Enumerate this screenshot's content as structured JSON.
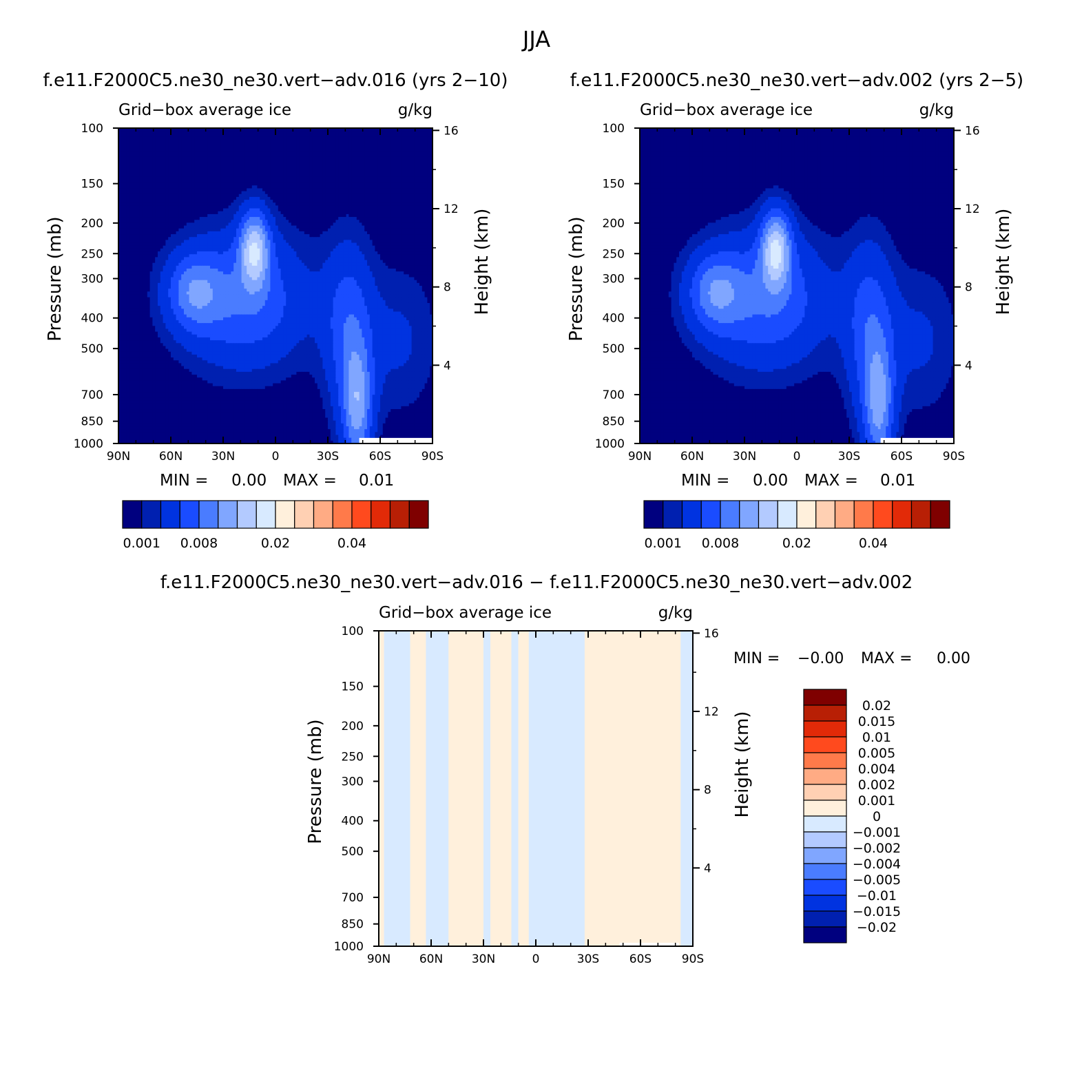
{
  "page": {
    "title": "JJA"
  },
  "palette": {
    "mean": [
      "#00007f",
      "#0020b0",
      "#0033e0",
      "#1a4cff",
      "#4a7cff",
      "#80a6ff",
      "#b3caff",
      "#d8eaff",
      "#fff0dc",
      "#ffd0b3",
      "#ffab84",
      "#ff7a4a",
      "#ff4a1e",
      "#e22a08",
      "#b81f05",
      "#7f0000"
    ],
    "diff": [
      "#7f0000",
      "#b81f05",
      "#e22a08",
      "#ff4a1e",
      "#ff7a4a",
      "#ffab84",
      "#ffd0b3",
      "#fff0dc",
      "#d8eaff",
      "#b3caff",
      "#80a6ff",
      "#4a7cff",
      "#1a4cff",
      "#0033e0",
      "#0020b0",
      "#00007f"
    ]
  },
  "chart_data": [
    {
      "id": "p1",
      "type": "heatmap",
      "title": "f.e11.F2000C5.ne30_ne30.vert-adv.016 (yrs 2-10)",
      "left_label": "Grid-box average ice",
      "right_label": "g/kg",
      "xlabel": "",
      "ylabel": "Pressure (mb)",
      "y2label": "Height (km)",
      "xlim": [
        90,
        -90
      ],
      "ylim": [
        1000,
        100
      ],
      "x_ticks": [
        {
          "v": 90,
          "label": "90N"
        },
        {
          "v": 60,
          "label": "60N"
        },
        {
          "v": 30,
          "label": "30N"
        },
        {
          "v": 0,
          "label": "0"
        },
        {
          "v": -30,
          "label": "30S"
        },
        {
          "v": -60,
          "label": "60S"
        },
        {
          "v": -90,
          "label": "90S"
        }
      ],
      "y_ticks": [
        {
          "v": 100,
          "label": "100"
        },
        {
          "v": 150,
          "label": "150"
        },
        {
          "v": 200,
          "label": "200"
        },
        {
          "v": 250,
          "label": "250"
        },
        {
          "v": 300,
          "label": "300"
        },
        {
          "v": 400,
          "label": "400"
        },
        {
          "v": 500,
          "label": "500"
        },
        {
          "v": 700,
          "label": "700"
        },
        {
          "v": 850,
          "label": "850"
        },
        {
          "v": 1000,
          "label": "1000"
        }
      ],
      "y2_ticks": [
        {
          "km": 16,
          "label": "16"
        },
        {
          "km": 12,
          "label": "12"
        },
        {
          "km": 8,
          "label": "8"
        },
        {
          "km": 4,
          "label": "4"
        }
      ],
      "min_label": "MIN =",
      "min_value": "0.00",
      "max_label": "MAX =",
      "max_value": "0.01",
      "colorbar": {
        "orientation": "horizontal",
        "labels": [
          {
            "index": 0,
            "text": "0.001"
          },
          {
            "index": 3,
            "text": "0.008"
          },
          {
            "index": 7,
            "text": "0.02"
          },
          {
            "index": 11,
            "text": "0.04"
          }
        ]
      },
      "features": [
        {
          "cx": 18,
          "cp": 350,
          "sx": 26,
          "sy": 1.0,
          "amp": 0.006
        },
        {
          "cx": 47,
          "cp": 330,
          "sx": 11,
          "sy": 0.55,
          "amp": 0.0055
        },
        {
          "cx": 12,
          "cp": 240,
          "sx": 6,
          "sy": 0.55,
          "amp": 0.0095
        },
        {
          "cx": -42,
          "cp": 440,
          "sx": 10,
          "sy": 1.3,
          "amp": 0.005
        },
        {
          "cx": -47,
          "cp": 780,
          "sx": 6,
          "sy": 0.9,
          "amp": 0.0075
        },
        {
          "cx": -72,
          "cp": 470,
          "sx": 15,
          "sy": 1.1,
          "amp": 0.0022
        }
      ],
      "missing": {
        "x_from": -48,
        "x_to": -90,
        "p_from": 960,
        "p_to": 1000
      }
    },
    {
      "id": "p2",
      "type": "heatmap",
      "title": "f.e11.F2000C5.ne30_ne30.vert-adv.002 (yrs 2-5)",
      "left_label": "Grid-box average ice",
      "right_label": "g/kg",
      "xlabel": "",
      "ylabel": "Pressure (mb)",
      "y2label": "Height (km)",
      "xlim": [
        90,
        -90
      ],
      "ylim": [
        1000,
        100
      ],
      "x_ticks": [
        {
          "v": 90,
          "label": "90N"
        },
        {
          "v": 60,
          "label": "60N"
        },
        {
          "v": 30,
          "label": "30N"
        },
        {
          "v": 0,
          "label": "0"
        },
        {
          "v": -30,
          "label": "30S"
        },
        {
          "v": -60,
          "label": "60S"
        },
        {
          "v": -90,
          "label": "90S"
        }
      ],
      "y_ticks": [
        {
          "v": 100,
          "label": "100"
        },
        {
          "v": 150,
          "label": "150"
        },
        {
          "v": 200,
          "label": "200"
        },
        {
          "v": 250,
          "label": "250"
        },
        {
          "v": 300,
          "label": "300"
        },
        {
          "v": 400,
          "label": "400"
        },
        {
          "v": 500,
          "label": "500"
        },
        {
          "v": 700,
          "label": "700"
        },
        {
          "v": 850,
          "label": "850"
        },
        {
          "v": 1000,
          "label": "1000"
        }
      ],
      "y2_ticks": [
        {
          "km": 16,
          "label": "16"
        },
        {
          "km": 12,
          "label": "12"
        },
        {
          "km": 8,
          "label": "8"
        },
        {
          "km": 4,
          "label": "4"
        }
      ],
      "min_label": "MIN =",
      "min_value": "0.00",
      "max_label": "MAX =",
      "max_value": "0.01",
      "colorbar": {
        "orientation": "horizontal",
        "labels": [
          {
            "index": 0,
            "text": "0.001"
          },
          {
            "index": 3,
            "text": "0.008"
          },
          {
            "index": 7,
            "text": "0.02"
          },
          {
            "index": 11,
            "text": "0.04"
          }
        ]
      },
      "features": [
        {
          "cx": 18,
          "cp": 350,
          "sx": 26,
          "sy": 1.0,
          "amp": 0.006
        },
        {
          "cx": 47,
          "cp": 330,
          "sx": 11,
          "sy": 0.55,
          "amp": 0.0055
        },
        {
          "cx": 12,
          "cp": 240,
          "sx": 6,
          "sy": 0.55,
          "amp": 0.0098
        },
        {
          "cx": -42,
          "cp": 440,
          "sx": 10,
          "sy": 1.3,
          "amp": 0.005
        },
        {
          "cx": -47,
          "cp": 780,
          "sx": 6,
          "sy": 0.9,
          "amp": 0.0072
        },
        {
          "cx": -72,
          "cp": 470,
          "sx": 15,
          "sy": 1.1,
          "amp": 0.0022
        }
      ],
      "missing": {
        "x_from": -48,
        "x_to": -90,
        "p_from": 960,
        "p_to": 1000
      }
    },
    {
      "id": "p3",
      "type": "heatmap",
      "title": "f.e11.F2000C5.ne30_ne30.vert-adv.016 - f.e11.F2000C5.ne30_ne30.vert-adv.002",
      "left_label": "Grid-box average ice",
      "right_label": "g/kg",
      "xlabel": "",
      "ylabel": "Pressure (mb)",
      "y2label": "Height (km)",
      "xlim": [
        90,
        -90
      ],
      "ylim": [
        1000,
        100
      ],
      "x_ticks": [
        {
          "v": 90,
          "label": "90N"
        },
        {
          "v": 60,
          "label": "60N"
        },
        {
          "v": 30,
          "label": "30N"
        },
        {
          "v": 0,
          "label": "0"
        },
        {
          "v": -30,
          "label": "30S"
        },
        {
          "v": -60,
          "label": "60S"
        },
        {
          "v": -90,
          "label": "90S"
        }
      ],
      "y_ticks": [
        {
          "v": 100,
          "label": "100"
        },
        {
          "v": 150,
          "label": "150"
        },
        {
          "v": 200,
          "label": "200"
        },
        {
          "v": 250,
          "label": "250"
        },
        {
          "v": 300,
          "label": "300"
        },
        {
          "v": 400,
          "label": "400"
        },
        {
          "v": 500,
          "label": "500"
        },
        {
          "v": 700,
          "label": "700"
        },
        {
          "v": 850,
          "label": "850"
        },
        {
          "v": 1000,
          "label": "1000"
        }
      ],
      "y2_ticks": [
        {
          "km": 16,
          "label": "16"
        },
        {
          "km": 12,
          "label": "12"
        },
        {
          "km": 8,
          "label": "8"
        },
        {
          "km": 4,
          "label": "4"
        }
      ],
      "min_label": "MIN =",
      "min_value": "-0.00",
      "max_label": "MAX =",
      "max_value": "0.00",
      "colorbar": {
        "orientation": "vertical",
        "labels": [
          "0.02",
          "0.015",
          "0.01",
          "0.005",
          "0.004",
          "0.002",
          "0.001",
          "0",
          "-0.001",
          "-0.002",
          "-0.004",
          "-0.005",
          "-0.01",
          "-0.015",
          "-0.02"
        ]
      },
      "stripes": [
        {
          "x_from": 90,
          "x_to": 87,
          "sign": 1
        },
        {
          "x_from": 87,
          "x_to": 72,
          "sign": -1
        },
        {
          "x_from": 72,
          "x_to": 63,
          "sign": 1
        },
        {
          "x_from": 63,
          "x_to": 50,
          "sign": -1
        },
        {
          "x_from": 50,
          "x_to": 30,
          "sign": 1
        },
        {
          "x_from": 30,
          "x_to": 26,
          "sign": -1
        },
        {
          "x_from": 26,
          "x_to": 14,
          "sign": 1
        },
        {
          "x_from": 14,
          "x_to": 10,
          "sign": -1
        },
        {
          "x_from": 10,
          "x_to": 4,
          "sign": 1
        },
        {
          "x_from": 4,
          "x_to": -4,
          "sign": -1
        },
        {
          "x_from": 4,
          "x_to": -28,
          "sign": -1,
          "p_from": 100,
          "p_to": 1000,
          "note": "upper band"
        },
        {
          "x_from": -28,
          "x_to": -83,
          "sign": 1
        },
        {
          "x_from": -83,
          "x_to": -90,
          "sign": -1
        }
      ],
      "missing": {
        "x_from": -48,
        "x_to": -82,
        "p_from": 975,
        "p_to": 1000
      }
    }
  ]
}
